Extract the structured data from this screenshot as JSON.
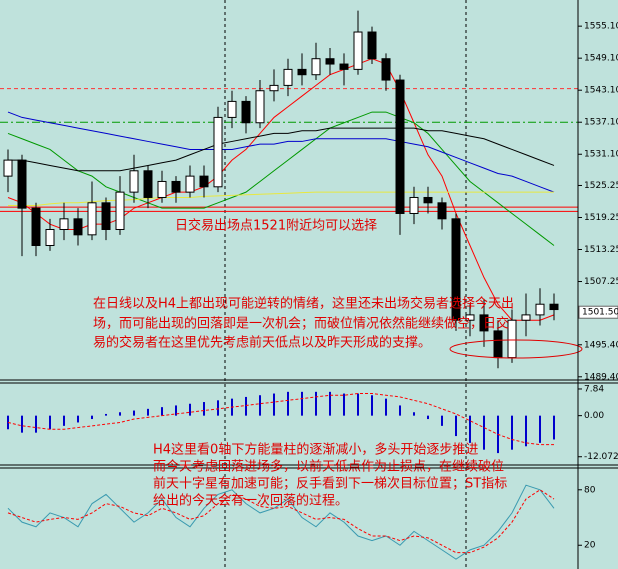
{
  "chart_data": [
    {
      "type": "candlestick",
      "ylim": [
        1488.8,
        1560
      ],
      "yticks": [
        {
          "value": 1555.1,
          "label": "1555.10"
        },
        {
          "value": 1549.1,
          "label": "1549.10"
        },
        {
          "value": 1543.1,
          "label": "1543.10"
        },
        {
          "value": 1537.1,
          "label": "1537.10"
        },
        {
          "value": 1531.1,
          "label": "1531.10"
        },
        {
          "value": 1525.25,
          "label": "1525.25"
        },
        {
          "value": 1519.25,
          "label": "1519.25"
        },
        {
          "value": 1513.25,
          "label": "1513.25"
        },
        {
          "value": 1507.25,
          "label": "1507.25"
        },
        {
          "value": 1495.4,
          "label": "1495.40"
        },
        {
          "value": 1489.4,
          "label": "1489.40"
        }
      ],
      "last_price": {
        "value": 1501.5,
        "label": "1501.50"
      },
      "open": [
        1527,
        1530,
        1521,
        1514,
        1517,
        1519,
        1516,
        1522,
        1517,
        1524,
        1528,
        1523,
        1526,
        1524,
        1527,
        1525,
        1538,
        1541,
        1537,
        1543,
        1544,
        1547,
        1546,
        1549,
        1548,
        1547,
        1554,
        1549,
        1545,
        1520,
        1523,
        1522,
        1519,
        1500,
        1501,
        1498,
        1493,
        1500,
        1501,
        1503
      ],
      "high": [
        1532,
        1531,
        1522,
        1519,
        1522,
        1521,
        1526,
        1523,
        1527,
        1531,
        1529,
        1528,
        1527,
        1529,
        1529,
        1540,
        1543,
        1542,
        1545,
        1547,
        1549,
        1550,
        1552,
        1551,
        1550,
        1558,
        1555,
        1550,
        1546,
        1525,
        1525,
        1523,
        1520,
        1503,
        1504,
        1500,
        1502,
        1505,
        1506,
        1505
      ],
      "low": [
        1524,
        1512,
        1512,
        1513,
        1515,
        1514,
        1515,
        1515,
        1516,
        1522,
        1521,
        1522,
        1522,
        1523,
        1523,
        1524,
        1536,
        1535,
        1536,
        1541,
        1542,
        1544,
        1545,
        1546,
        1544,
        1546,
        1548,
        1543,
        1516,
        1518,
        1520,
        1517,
        1498,
        1497,
        1495,
        1491,
        1492,
        1497,
        1499,
        1500
      ],
      "close": [
        1530,
        1521,
        1514,
        1517,
        1519,
        1516,
        1522,
        1517,
        1524,
        1528,
        1523,
        1526,
        1524,
        1527,
        1525,
        1538,
        1541,
        1537,
        1543,
        1544,
        1547,
        1546,
        1549,
        1548,
        1547,
        1554,
        1549,
        1545,
        1520,
        1523,
        1522,
        1519,
        1500,
        1501,
        1498,
        1493,
        1500,
        1501,
        1503,
        1502
      ],
      "up_color": "#ffffff",
      "down_color": "#000000",
      "series": [
        {
          "color": "#ff0000",
          "values": [
            1523,
            1522,
            1520,
            1518,
            1517,
            1517,
            1518,
            1518,
            1519,
            1521,
            1522,
            1523,
            1524,
            1524,
            1525,
            1527,
            1530,
            1532,
            1535,
            1538,
            1540,
            1542,
            1544,
            1546,
            1547,
            1548,
            1549,
            1548,
            1543,
            1537,
            1531,
            1527,
            1520,
            1514,
            1508,
            1503,
            1500,
            1500,
            1500,
            1501
          ]
        },
        {
          "color": "#009900",
          "values": [
            1535,
            1534,
            1533,
            1532,
            1530,
            1528,
            1527,
            1525,
            1524,
            1523,
            1522,
            1521,
            1521,
            1521,
            1521,
            1522,
            1523,
            1524,
            1526,
            1528,
            1530,
            1532,
            1534,
            1536,
            1537,
            1538,
            1539,
            1539,
            1538,
            1537,
            1535,
            1532,
            1529,
            1526,
            1524,
            1522,
            1520,
            1518,
            1516,
            1514
          ]
        },
        {
          "color": "#0000cc",
          "values": [
            1539,
            1538,
            1537.5,
            1537,
            1536.5,
            1536,
            1535.5,
            1535,
            1534.5,
            1534,
            1533.5,
            1533,
            1532.5,
            1532,
            1532,
            1532,
            1532,
            1532.5,
            1533,
            1533,
            1533.5,
            1533.5,
            1534,
            1534,
            1534,
            1534,
            1534,
            1534,
            1533.5,
            1533,
            1532.5,
            1531.5,
            1530.5,
            1529.5,
            1528.5,
            1527.5,
            1527,
            1526,
            1525,
            1524
          ]
        },
        {
          "color": "#000000",
          "values": [
            1530,
            1530,
            1529.5,
            1529,
            1528.5,
            1528,
            1528,
            1528,
            1528,
            1528.5,
            1529,
            1529.5,
            1530,
            1531,
            1532,
            1533,
            1533.5,
            1534,
            1534.5,
            1535,
            1535,
            1535.5,
            1535.5,
            1536,
            1536,
            1536,
            1536,
            1536,
            1536,
            1536,
            1535.5,
            1535.5,
            1535,
            1534.5,
            1534,
            1533,
            1532,
            1531,
            1530,
            1529
          ]
        },
        {
          "color": "#e8e840",
          "values": [
            1521.5,
            1521.5,
            1521.5,
            1521.8,
            1522,
            1522,
            1522.2,
            1522.4,
            1522.5,
            1522.6,
            1522.8,
            1523,
            1523,
            1523,
            1523.2,
            1523.3,
            1523.4,
            1523.5,
            1523.6,
            1523.7,
            1523.8,
            1523.9,
            1524,
            1524,
            1524,
            1524,
            1524,
            1524,
            1524,
            1524,
            1524,
            1524,
            1524,
            1524,
            1524,
            1524,
            1524,
            1524,
            1524,
            1524
          ]
        }
      ],
      "levels": [
        {
          "value": 1543.4,
          "color": "#ff3333",
          "style": "dashed"
        },
        {
          "value": 1537.1,
          "color": "#009900",
          "style": "dashdot"
        },
        {
          "value": 1521.2,
          "color": "#ff0000",
          "style": "solid"
        },
        {
          "value": 1520.4,
          "color": "#ff0000",
          "style": "solid"
        }
      ],
      "annotations": [
        "日交易出场点1521附近均可以选择",
        "在日线以及H4上都出现可能逆转的情绪，这里还未出场交易者选择今天出",
        "场，而可能出现的回落即是一次机会；而破位情况依然能继续做空，日交",
        "易的交易者在这里优先考虑前天低点以及昨天形成的支撑。"
      ]
    },
    {
      "type": "histogram",
      "ylim": [
        -14.5,
        9.3
      ],
      "yticks": [
        {
          "value": 7.84,
          "label": "7.84"
        },
        {
          "value": 0,
          "label": "0.00"
        },
        {
          "value": -12.072,
          "label": "-12.072"
        }
      ],
      "color": "#0000cc",
      "values": [
        -4,
        -5,
        -5,
        -4,
        -3,
        -2,
        -1,
        0.5,
        1,
        1.5,
        2,
        2.5,
        3,
        3.5,
        4,
        4.5,
        5,
        5.5,
        6,
        6.5,
        7,
        7,
        7,
        7,
        6.5,
        6.5,
        6,
        5,
        3,
        1,
        -1,
        -3,
        -6,
        -8,
        -10,
        -11,
        -10,
        -9,
        -8,
        -7
      ],
      "signal": {
        "color": "#ff0000",
        "values": [
          -2,
          -3,
          -3.5,
          -4,
          -4,
          -3.5,
          -3,
          -2.5,
          -2,
          -1,
          -0.5,
          0,
          0.5,
          1,
          1.5,
          2,
          2.5,
          3,
          3.5,
          4,
          4.5,
          5,
          5.5,
          6,
          6,
          6.5,
          6.5,
          6,
          5.5,
          4.5,
          3.5,
          2,
          0.5,
          -1.5,
          -3.5,
          -5.5,
          -7,
          -8,
          -8.5,
          -8.5
        ]
      },
      "annotations": [
        "H4这里看0轴下方能量柱的逐渐减小，多头开始逐步推进",
        "而今天考虑回落进场多，以前天低点作为止损点，在继续破位",
        "前天十字星有加速可能；反手看到下一梯次目标位置；ST指标",
        "给出的今天会有一次回落的过程。"
      ]
    },
    {
      "type": "line",
      "ylim": [
        -5.7,
        102.5
      ],
      "yticks": [
        80,
        20
      ],
      "series": [
        {
          "color": "#3a9ab0",
          "style": "solid",
          "values": [
            60,
            45,
            40,
            55,
            50,
            40,
            65,
            75,
            60,
            45,
            55,
            70,
            50,
            40,
            60,
            75,
            80,
            65,
            55,
            60,
            70,
            50,
            40,
            55,
            45,
            30,
            25,
            30,
            20,
            35,
            25,
            15,
            5,
            15,
            20,
            35,
            55,
            85,
            80,
            60
          ]
        },
        {
          "color": "#ff0000",
          "style": "dashed",
          "values": [
            55,
            50,
            45,
            48,
            50,
            48,
            55,
            65,
            62,
            55,
            52,
            60,
            55,
            48,
            52,
            65,
            75,
            70,
            62,
            60,
            62,
            55,
            48,
            50,
            48,
            38,
            30,
            30,
            25,
            30,
            28,
            20,
            12,
            12,
            18,
            28,
            45,
            70,
            80,
            70
          ]
        }
      ]
    }
  ]
}
